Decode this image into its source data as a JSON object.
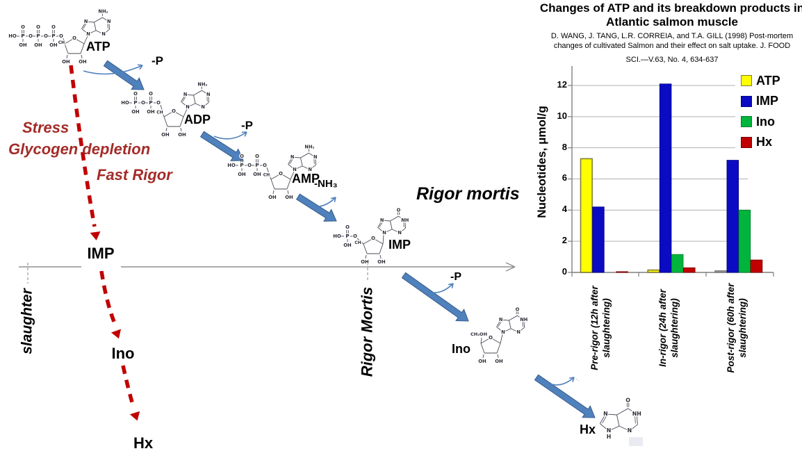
{
  "chart": {
    "title_line1": "Changes of ATP and its breakdown products in",
    "title_line2": "Atlantic salmon muscle",
    "citation_line1": "D. WANG, J. TANG, L.R. CORREIA, and T.A. GILL (1998) Post-mortem",
    "citation_line2": "changes of cultivated Salmon and their effect on salt uptake. J.  FOOD",
    "citation_line3": "SCI.—V.63, No. 4, 634-637"
  },
  "chart_data": {
    "type": "bar",
    "title": "Changes of ATP and its breakdown products in Atlantic salmon muscle",
    "ylabel": "Nucleotides, μmol/g",
    "xlabel": "",
    "ylim": [
      0,
      13
    ],
    "yticks": [
      0,
      2,
      4,
      6,
      8,
      10,
      12
    ],
    "grid": true,
    "legend_position": "right",
    "categories": [
      "Pre-rigor (12h after slaughtering)",
      "In-rigor (24h after slaughtering)",
      "Post-rigor (60h after slaughtering)"
    ],
    "series": [
      {
        "name": "ATP",
        "color": "#ffff00",
        "border": "#827d36",
        "values": [
          7.3,
          0.15,
          0.1
        ],
        "bar_colors": [
          "#ffff00",
          "#ffff00",
          "#a6a6a6"
        ],
        "bar_borders": [
          "#827d36",
          "#827d36",
          "#7f7f7f"
        ]
      },
      {
        "name": "IMP",
        "color": "#0b0bc4",
        "border": "#060684",
        "values": [
          4.2,
          12.1,
          7.2
        ]
      },
      {
        "name": "Ino",
        "color": "#00b43c",
        "border": "#00802b",
        "values": [
          0,
          1.15,
          4.0
        ]
      },
      {
        "name": "Hx",
        "color": "#c00000",
        "border": "#7d0000",
        "values": [
          0.05,
          0.3,
          0.8
        ]
      }
    ]
  },
  "diagram": {
    "molecules": [
      {
        "id": "atp",
        "label": "ATP",
        "phosphates_shown": 3,
        "base": "adenine"
      },
      {
        "id": "adp",
        "label": "ADP",
        "phosphates_shown": 2,
        "base": "adenine"
      },
      {
        "id": "amp",
        "label": "AMP",
        "phosphates_shown": 2,
        "base": "adenine"
      },
      {
        "id": "imp",
        "label": "IMP",
        "phosphates_shown": 1,
        "base": "hypoxanthine"
      },
      {
        "id": "ino",
        "label": "Ino",
        "phosphates_shown": 0,
        "base": "hypoxanthine"
      },
      {
        "id": "hx",
        "label": "Hx",
        "phosphates_shown": 0,
        "base": "hypoxanthine",
        "base_only": true
      }
    ],
    "release_labels": [
      "-P",
      "-P",
      "-NH₃",
      "-P"
    ],
    "stress_lines": [
      "Stress",
      "Glycogen depletion",
      "Fast Rigor"
    ],
    "rigor_mortis_title": "Rigor mortis",
    "axis_labels": {
      "slaughter": "slaughter",
      "rigor_mortis": "Rigor Mortis"
    },
    "cascade": [
      "IMP",
      "Ino",
      "Hx"
    ],
    "atom_symbols": {
      "p": "P",
      "o": "O",
      "oh": "OH",
      "ho": "HO",
      "n": "N",
      "nh": "NH",
      "nh2": "NH₂",
      "ch": "CH",
      "ch2oh": "CH₂OH",
      "h": "H"
    },
    "colors": {
      "block_arrow": "#4f81bd",
      "block_arrow_border": "#385d8a",
      "dashed_arrow_red": "#c00000",
      "stress_text_red": "#a32c28",
      "timeline_gray": "#8f8f8f",
      "grid_gray": "#b0b0b0",
      "axis_gray": "#7f7f7f",
      "structure_gray": "#4a4a55"
    }
  }
}
